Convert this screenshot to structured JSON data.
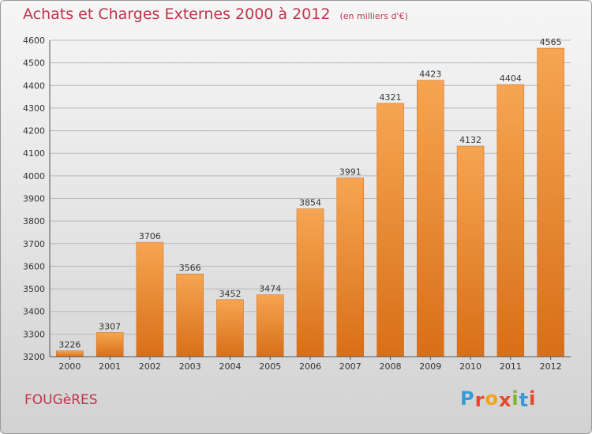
{
  "title": "Achats et Charges Externes 2000 à 2012",
  "unit": "(en milliers d'€)",
  "town": "FOUGèRES",
  "logo": {
    "letters": [
      "P",
      "r",
      "o",
      "x",
      "i",
      "t",
      "i"
    ],
    "colors": [
      "#3a9ad9",
      "#e8452c",
      "#f2a31b",
      "#e8452c",
      "#7cb728",
      "#3a9ad9",
      "#e8452c"
    ]
  },
  "colors": {
    "title": "#c0344a",
    "bar_light": "#f6a552",
    "bar_dark": "#d86f17"
  },
  "chart_data": {
    "type": "bar",
    "categories": [
      "2000",
      "2001",
      "2002",
      "2003",
      "2004",
      "2005",
      "2006",
      "2007",
      "2008",
      "2009",
      "2010",
      "2011",
      "2012"
    ],
    "values": [
      3226,
      3307,
      3706,
      3566,
      3452,
      3474,
      3854,
      3991,
      4321,
      4423,
      4132,
      4404,
      4565
    ],
    "ylim": [
      3200,
      4600
    ],
    "yticks": [
      3200,
      3300,
      3400,
      3500,
      3600,
      3700,
      3800,
      3900,
      4000,
      4100,
      4200,
      4300,
      4400,
      4500,
      4600
    ],
    "grid": true
  }
}
